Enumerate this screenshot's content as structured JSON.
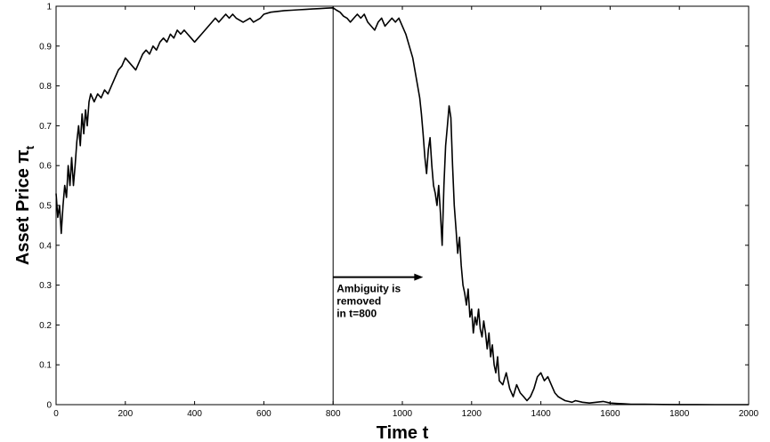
{
  "chart_data": {
    "type": "line",
    "title": "",
    "xlabel": "Time t",
    "ylabel_main": "Asset Price π",
    "ylabel_sub": "t",
    "xlim": [
      0,
      2000
    ],
    "ylim": [
      0,
      1
    ],
    "x_ticks": [
      0,
      200,
      400,
      600,
      800,
      1000,
      1200,
      1400,
      1600,
      1800,
      2000
    ],
    "y_ticks": [
      0,
      0.1,
      0.2,
      0.3,
      0.4,
      0.5,
      0.6,
      0.7,
      0.8,
      0.9,
      1
    ],
    "x_tick_labels": [
      "0",
      "200",
      "400",
      "600",
      "800",
      "1000",
      "1200",
      "1400",
      "1600",
      "1800",
      "2000"
    ],
    "y_tick_labels": [
      "0",
      "0.1",
      "0.2",
      "0.3",
      "0.4",
      "0.5",
      "0.6",
      "0.7",
      "0.8",
      "0.9",
      "1"
    ],
    "grid": false,
    "colors": {
      "line": "#000000",
      "axes": "#000000",
      "background": "#ffffff"
    },
    "vertical_marker": {
      "x": 800
    },
    "annotation": {
      "lines": [
        "Ambiguity is",
        "removed",
        "in t=800"
      ],
      "arrow": {
        "x_start": 800,
        "x_end": 1060,
        "y": 0.32
      }
    },
    "series": [
      {
        "points": [
          [
            0,
            0.53
          ],
          [
            5,
            0.47
          ],
          [
            10,
            0.5
          ],
          [
            15,
            0.43
          ],
          [
            20,
            0.5
          ],
          [
            25,
            0.55
          ],
          [
            30,
            0.52
          ],
          [
            35,
            0.6
          ],
          [
            40,
            0.55
          ],
          [
            45,
            0.62
          ],
          [
            50,
            0.55
          ],
          [
            55,
            0.6
          ],
          [
            60,
            0.66
          ],
          [
            65,
            0.7
          ],
          [
            70,
            0.65
          ],
          [
            75,
            0.73
          ],
          [
            80,
            0.68
          ],
          [
            85,
            0.74
          ],
          [
            90,
            0.7
          ],
          [
            95,
            0.76
          ],
          [
            100,
            0.78
          ],
          [
            110,
            0.76
          ],
          [
            120,
            0.78
          ],
          [
            130,
            0.77
          ],
          [
            140,
            0.79
          ],
          [
            150,
            0.78
          ],
          [
            160,
            0.8
          ],
          [
            170,
            0.82
          ],
          [
            180,
            0.84
          ],
          [
            190,
            0.85
          ],
          [
            200,
            0.87
          ],
          [
            210,
            0.86
          ],
          [
            220,
            0.85
          ],
          [
            230,
            0.84
          ],
          [
            240,
            0.86
          ],
          [
            250,
            0.88
          ],
          [
            260,
            0.89
          ],
          [
            270,
            0.88
          ],
          [
            280,
            0.9
          ],
          [
            290,
            0.89
          ],
          [
            300,
            0.91
          ],
          [
            310,
            0.92
          ],
          [
            320,
            0.91
          ],
          [
            330,
            0.93
          ],
          [
            340,
            0.92
          ],
          [
            350,
            0.94
          ],
          [
            360,
            0.93
          ],
          [
            370,
            0.94
          ],
          [
            380,
            0.93
          ],
          [
            390,
            0.92
          ],
          [
            400,
            0.91
          ],
          [
            410,
            0.92
          ],
          [
            420,
            0.93
          ],
          [
            430,
            0.94
          ],
          [
            440,
            0.95
          ],
          [
            450,
            0.96
          ],
          [
            460,
            0.97
          ],
          [
            470,
            0.96
          ],
          [
            480,
            0.97
          ],
          [
            490,
            0.98
          ],
          [
            500,
            0.97
          ],
          [
            510,
            0.98
          ],
          [
            520,
            0.97
          ],
          [
            530,
            0.965
          ],
          [
            540,
            0.96
          ],
          [
            550,
            0.965
          ],
          [
            560,
            0.97
          ],
          [
            570,
            0.96
          ],
          [
            580,
            0.965
          ],
          [
            590,
            0.97
          ],
          [
            600,
            0.98
          ],
          [
            620,
            0.985
          ],
          [
            640,
            0.987
          ],
          [
            660,
            0.989
          ],
          [
            680,
            0.99
          ],
          [
            700,
            0.991
          ],
          [
            720,
            0.992
          ],
          [
            740,
            0.993
          ],
          [
            760,
            0.994
          ],
          [
            780,
            0.995
          ],
          [
            800,
            0.996
          ],
          [
            810,
            0.99
          ],
          [
            820,
            0.985
          ],
          [
            830,
            0.975
          ],
          [
            840,
            0.97
          ],
          [
            850,
            0.96
          ],
          [
            860,
            0.97
          ],
          [
            870,
            0.98
          ],
          [
            880,
            0.97
          ],
          [
            890,
            0.98
          ],
          [
            900,
            0.96
          ],
          [
            910,
            0.95
          ],
          [
            920,
            0.94
          ],
          [
            930,
            0.96
          ],
          [
            940,
            0.97
          ],
          [
            950,
            0.95
          ],
          [
            960,
            0.96
          ],
          [
            970,
            0.97
          ],
          [
            980,
            0.96
          ],
          [
            990,
            0.97
          ],
          [
            1000,
            0.95
          ],
          [
            1010,
            0.93
          ],
          [
            1020,
            0.9
          ],
          [
            1030,
            0.87
          ],
          [
            1040,
            0.82
          ],
          [
            1050,
            0.77
          ],
          [
            1055,
            0.73
          ],
          [
            1060,
            0.68
          ],
          [
            1065,
            0.62
          ],
          [
            1070,
            0.58
          ],
          [
            1075,
            0.64
          ],
          [
            1080,
            0.67
          ],
          [
            1085,
            0.6
          ],
          [
            1090,
            0.55
          ],
          [
            1095,
            0.53
          ],
          [
            1100,
            0.5
          ],
          [
            1105,
            0.55
          ],
          [
            1110,
            0.48
          ],
          [
            1115,
            0.4
          ],
          [
            1120,
            0.55
          ],
          [
            1125,
            0.65
          ],
          [
            1130,
            0.7
          ],
          [
            1135,
            0.75
          ],
          [
            1140,
            0.72
          ],
          [
            1145,
            0.6
          ],
          [
            1150,
            0.5
          ],
          [
            1155,
            0.44
          ],
          [
            1160,
            0.38
          ],
          [
            1165,
            0.42
          ],
          [
            1170,
            0.35
          ],
          [
            1175,
            0.3
          ],
          [
            1180,
            0.28
          ],
          [
            1185,
            0.25
          ],
          [
            1190,
            0.29
          ],
          [
            1195,
            0.22
          ],
          [
            1200,
            0.24
          ],
          [
            1205,
            0.18
          ],
          [
            1210,
            0.22
          ],
          [
            1215,
            0.2
          ],
          [
            1220,
            0.24
          ],
          [
            1225,
            0.19
          ],
          [
            1230,
            0.17
          ],
          [
            1235,
            0.21
          ],
          [
            1240,
            0.18
          ],
          [
            1245,
            0.14
          ],
          [
            1250,
            0.18
          ],
          [
            1255,
            0.12
          ],
          [
            1260,
            0.15
          ],
          [
            1265,
            0.1
          ],
          [
            1270,
            0.08
          ],
          [
            1275,
            0.12
          ],
          [
            1280,
            0.06
          ],
          [
            1290,
            0.05
          ],
          [
            1300,
            0.08
          ],
          [
            1310,
            0.04
          ],
          [
            1320,
            0.02
          ],
          [
            1330,
            0.05
          ],
          [
            1340,
            0.03
          ],
          [
            1350,
            0.02
          ],
          [
            1360,
            0.01
          ],
          [
            1370,
            0.02
          ],
          [
            1380,
            0.04
          ],
          [
            1390,
            0.07
          ],
          [
            1400,
            0.08
          ],
          [
            1410,
            0.06
          ],
          [
            1420,
            0.07
          ],
          [
            1430,
            0.05
          ],
          [
            1440,
            0.03
          ],
          [
            1450,
            0.02
          ],
          [
            1460,
            0.015
          ],
          [
            1470,
            0.01
          ],
          [
            1480,
            0.008
          ],
          [
            1490,
            0.006
          ],
          [
            1500,
            0.01
          ],
          [
            1520,
            0.006
          ],
          [
            1540,
            0.004
          ],
          [
            1560,
            0.006
          ],
          [
            1580,
            0.008
          ],
          [
            1600,
            0.004
          ],
          [
            1620,
            0.003
          ],
          [
            1640,
            0.002
          ],
          [
            1660,
            0.001
          ],
          [
            1700,
            0.001
          ],
          [
            1750,
            0.0005
          ],
          [
            1800,
            0.0003
          ],
          [
            1850,
            0.0002
          ],
          [
            1900,
            0.0001
          ],
          [
            1950,
            0.0001
          ],
          [
            2000,
            0.0001
          ]
        ]
      }
    ]
  }
}
